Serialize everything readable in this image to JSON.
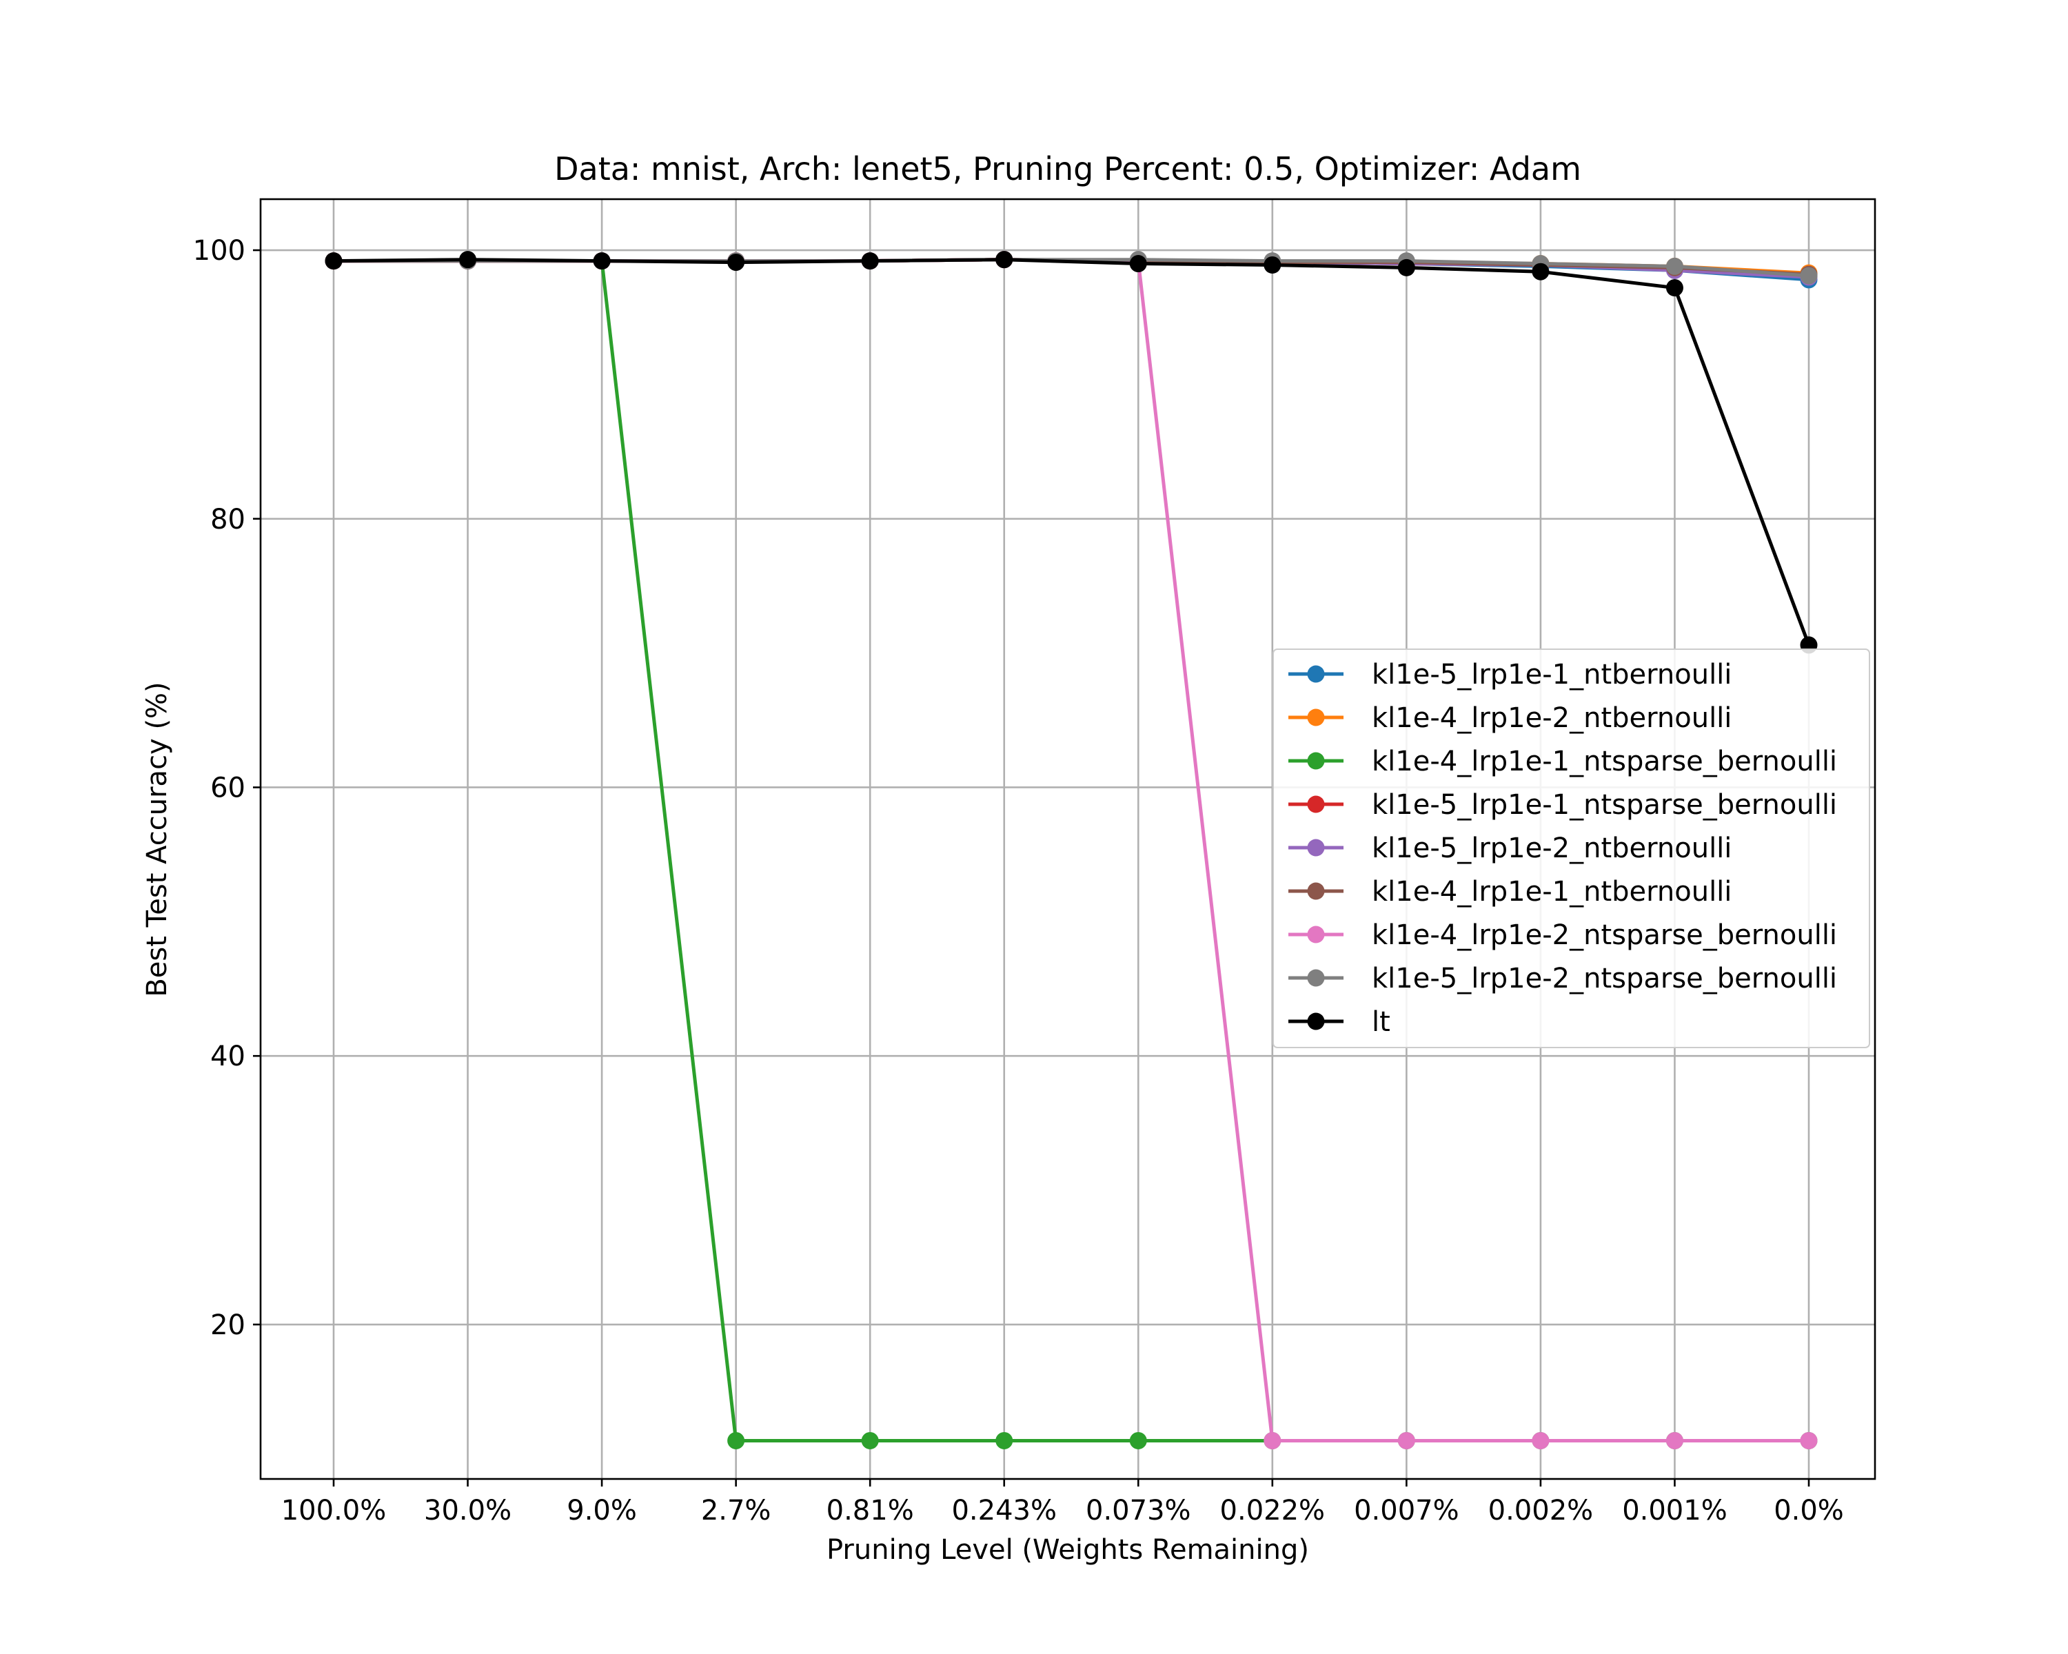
{
  "chart_data": {
    "type": "line",
    "title": "Data: mnist, Arch: lenet5, Pruning Percent: 0.5, Optimizer: Adam",
    "xlabel": "Pruning Level (Weights Remaining)",
    "ylabel": "Best Test Accuracy (%)",
    "categories": [
      "100.0%",
      "30.0%",
      "9.0%",
      "2.7%",
      "0.81%",
      "0.243%",
      "0.073%",
      "0.022%",
      "0.007%",
      "0.002%",
      "0.001%",
      "0.0%"
    ],
    "ylim": [
      8.5,
      103.8
    ],
    "yticks": [
      20,
      40,
      60,
      80,
      100
    ],
    "grid": true,
    "legend_position": "center-right",
    "series": [
      {
        "name": "kl1e-5_lrp1e-1_ntbernoulli",
        "color": "#1f77b4",
        "values": [
          99.2,
          99.2,
          99.2,
          99.2,
          99.2,
          99.3,
          99.2,
          99.1,
          99.0,
          98.8,
          98.5,
          97.8
        ]
      },
      {
        "name": "kl1e-4_lrp1e-2_ntbernoulli",
        "color": "#ff7f0e",
        "values": [
          99.2,
          99.2,
          99.2,
          99.2,
          99.2,
          99.3,
          99.2,
          99.1,
          99.1,
          99.0,
          98.8,
          98.3
        ]
      },
      {
        "name": "kl1e-4_lrp1e-1_ntsparse_bernoulli",
        "color": "#2ca02c",
        "values": [
          99.2,
          99.2,
          99.2,
          11.35,
          11.35,
          11.35,
          11.35,
          11.35,
          11.35,
          11.35,
          11.35,
          11.35
        ]
      },
      {
        "name": "kl1e-5_lrp1e-1_ntsparse_bernoulli",
        "color": "#d62728",
        "values": [
          99.2,
          99.2,
          99.2,
          99.2,
          99.2,
          99.3,
          99.2,
          99.1,
          99.0,
          98.9,
          98.6,
          98.1
        ]
      },
      {
        "name": "kl1e-5_lrp1e-2_ntbernoulli",
        "color": "#9467bd",
        "values": [
          99.2,
          99.2,
          99.2,
          99.2,
          99.2,
          99.3,
          99.2,
          99.1,
          99.0,
          98.9,
          98.5,
          98.0
        ]
      },
      {
        "name": "kl1e-4_lrp1e-1_ntbernoulli",
        "color": "#8c564b",
        "values": [
          99.2,
          99.2,
          99.2,
          99.2,
          99.2,
          99.3,
          99.2,
          99.1,
          99.1,
          98.9,
          98.7,
          98.2
        ]
      },
      {
        "name": "kl1e-4_lrp1e-2_ntsparse_bernoulli",
        "color": "#e377c2",
        "values": [
          99.2,
          99.2,
          99.2,
          99.2,
          99.2,
          99.3,
          99.2,
          11.35,
          11.35,
          11.35,
          11.35,
          11.35
        ]
      },
      {
        "name": "kl1e-5_lrp1e-2_ntsparse_bernoulli",
        "color": "#7f7f7f",
        "values": [
          99.2,
          99.2,
          99.2,
          99.2,
          99.2,
          99.3,
          99.3,
          99.2,
          99.2,
          99.0,
          98.8,
          98.1
        ]
      },
      {
        "name": "lt",
        "color": "#000000",
        "values": [
          99.2,
          99.3,
          99.2,
          99.1,
          99.2,
          99.3,
          99.0,
          98.9,
          98.7,
          98.4,
          97.2,
          70.6
        ]
      }
    ]
  }
}
